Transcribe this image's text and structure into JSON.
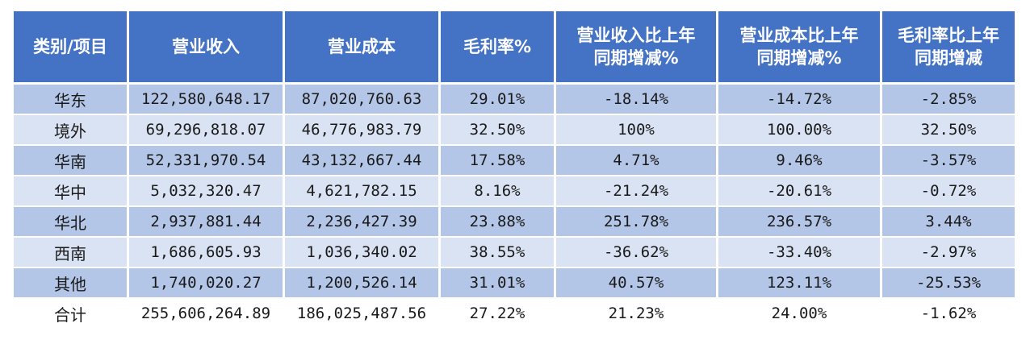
{
  "table": {
    "headers": [
      "类别/项目",
      "营业收入",
      "营业成本",
      "毛利率%",
      "营业收入比上年\n同期增减%",
      "营业成本比上年\n同期增减%",
      "毛利率比上年\n同期增减"
    ],
    "rows": [
      [
        "华东",
        "122,580,648.17",
        "87,020,760.63",
        "29.01%",
        "-18.14%",
        "-14.72%",
        "-2.85%"
      ],
      [
        "境外",
        "69,296,818.07",
        "46,776,983.79",
        "32.50%",
        "100%",
        "100.00%",
        "32.50%"
      ],
      [
        "华南",
        "52,331,970.54",
        "43,132,667.44",
        "17.58%",
        "4.71%",
        "9.46%",
        "-3.57%"
      ],
      [
        "华中",
        "5,032,320.47",
        "4,621,782.15",
        "8.16%",
        "-21.24%",
        "-20.61%",
        "-0.72%"
      ],
      [
        "华北",
        "2,937,881.44",
        "2,236,427.39",
        "23.88%",
        "251.78%",
        "236.57%",
        "3.44%"
      ],
      [
        "西南",
        "1,686,605.93",
        "1,036,340.02",
        "38.55%",
        "-36.62%",
        "-33.40%",
        "-2.97%"
      ],
      [
        "其他",
        "1,740,020.27",
        "1,200,526.14",
        "31.01%",
        "40.57%",
        "123.11%",
        "-25.53%"
      ],
      [
        "合计",
        "255,606,264.89",
        "186,025,487.56",
        "27.22%",
        "21.23%",
        "24.00%",
        "-1.62%"
      ]
    ]
  },
  "colors": {
    "header_bg": "#4472c4",
    "band_bg": "#b4c6e7",
    "plain_bg": "#dae3f3",
    "total_bg": "#ffffff"
  }
}
